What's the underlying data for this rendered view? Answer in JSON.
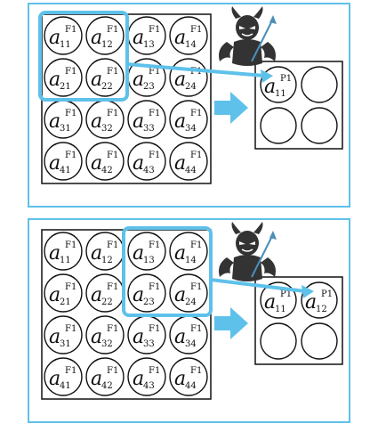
{
  "colors": {
    "highlight": "#5ec1ea",
    "cell_border": "#111111",
    "devil": "#333333"
  },
  "icons": {
    "attacker": "devil-icon",
    "direction": "right-arrow-icon"
  },
  "feature_grid": {
    "superscript": "F1",
    "cells": [
      [
        "11",
        "12",
        "13",
        "14"
      ],
      [
        "21",
        "22",
        "23",
        "24"
      ],
      [
        "31",
        "32",
        "33",
        "34"
      ],
      [
        "41",
        "42",
        "43",
        "44"
      ]
    ]
  },
  "panels": [
    {
      "highlight_window": {
        "row": 0,
        "col": 0
      },
      "pool_output": [
        {
          "sup": "P1",
          "sub": "11"
        },
        null,
        null,
        null
      ]
    },
    {
      "highlight_window": {
        "row": 0,
        "col": 2
      },
      "pool_output": [
        {
          "sup": "P1",
          "sub": "11"
        },
        {
          "sup": "P1",
          "sub": "12"
        },
        null,
        null
      ]
    }
  ]
}
